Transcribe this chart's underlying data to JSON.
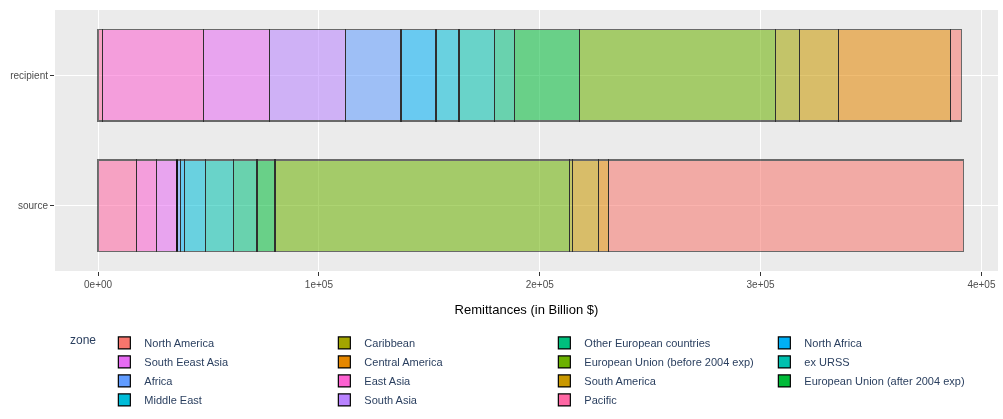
{
  "chart_data": {
    "type": "bar",
    "orientation": "horizontal",
    "stacked": true,
    "xlabel": "Remittances (in Billion $)",
    "legend_title": "zone",
    "legend": "bottom",
    "grid": true,
    "categories": [
      "recipient",
      "source"
    ],
    "xlim": [
      -19500,
      407500
    ],
    "xticks": [
      {
        "value": 0,
        "label": "0e+00"
      },
      {
        "value": 100000,
        "label": "1e+05"
      },
      {
        "value": 200000,
        "label": "2e+05"
      },
      {
        "value": 300000,
        "label": "3e+05"
      },
      {
        "value": 400000,
        "label": "4e+05"
      }
    ],
    "series": [
      {
        "name": "Pacific",
        "color": "#ff67a4",
        "values": [
          2000,
          17400
        ]
      },
      {
        "name": "East Asia",
        "color": "#fd61d1",
        "values": [
          45900,
          8900
        ]
      },
      {
        "name": "South Eeast Asia",
        "color": "#e76bf3",
        "values": [
          29800,
          9400
        ]
      },
      {
        "name": "South Asia",
        "color": "#b983ff",
        "values": [
          34500,
          0
        ]
      },
      {
        "name": "Africa",
        "color": "#619cff",
        "values": [
          25000,
          1500
        ]
      },
      {
        "name": "North Africa",
        "color": "#00b0f6",
        "values": [
          15800,
          2100
        ]
      },
      {
        "name": "Middle East",
        "color": "#00bcd8",
        "values": [
          10400,
          9200
        ]
      },
      {
        "name": "ex URSS",
        "color": "#00c0af",
        "values": [
          16100,
          12700
        ]
      },
      {
        "name": "Other European countries",
        "color": "#00bf7d",
        "values": [
          9000,
          10800
        ]
      },
      {
        "name": "European Union (after 2004 exp)",
        "color": "#00ba38",
        "values": [
          29400,
          8100
        ]
      },
      {
        "name": "European Union (before 2004 exp)",
        "color": "#6bb100",
        "values": [
          88800,
          133500
        ]
      },
      {
        "name": "Caribbean",
        "color": "#a3a500",
        "values": [
          11000,
          1200
        ]
      },
      {
        "name": "South America",
        "color": "#c99800",
        "values": [
          17400,
          11700
        ]
      },
      {
        "name": "Central America",
        "color": "#e58700",
        "values": [
          50800,
          4500
        ]
      },
      {
        "name": "North America",
        "color": "#f8766d",
        "values": [
          5200,
          160700
        ]
      }
    ]
  }
}
